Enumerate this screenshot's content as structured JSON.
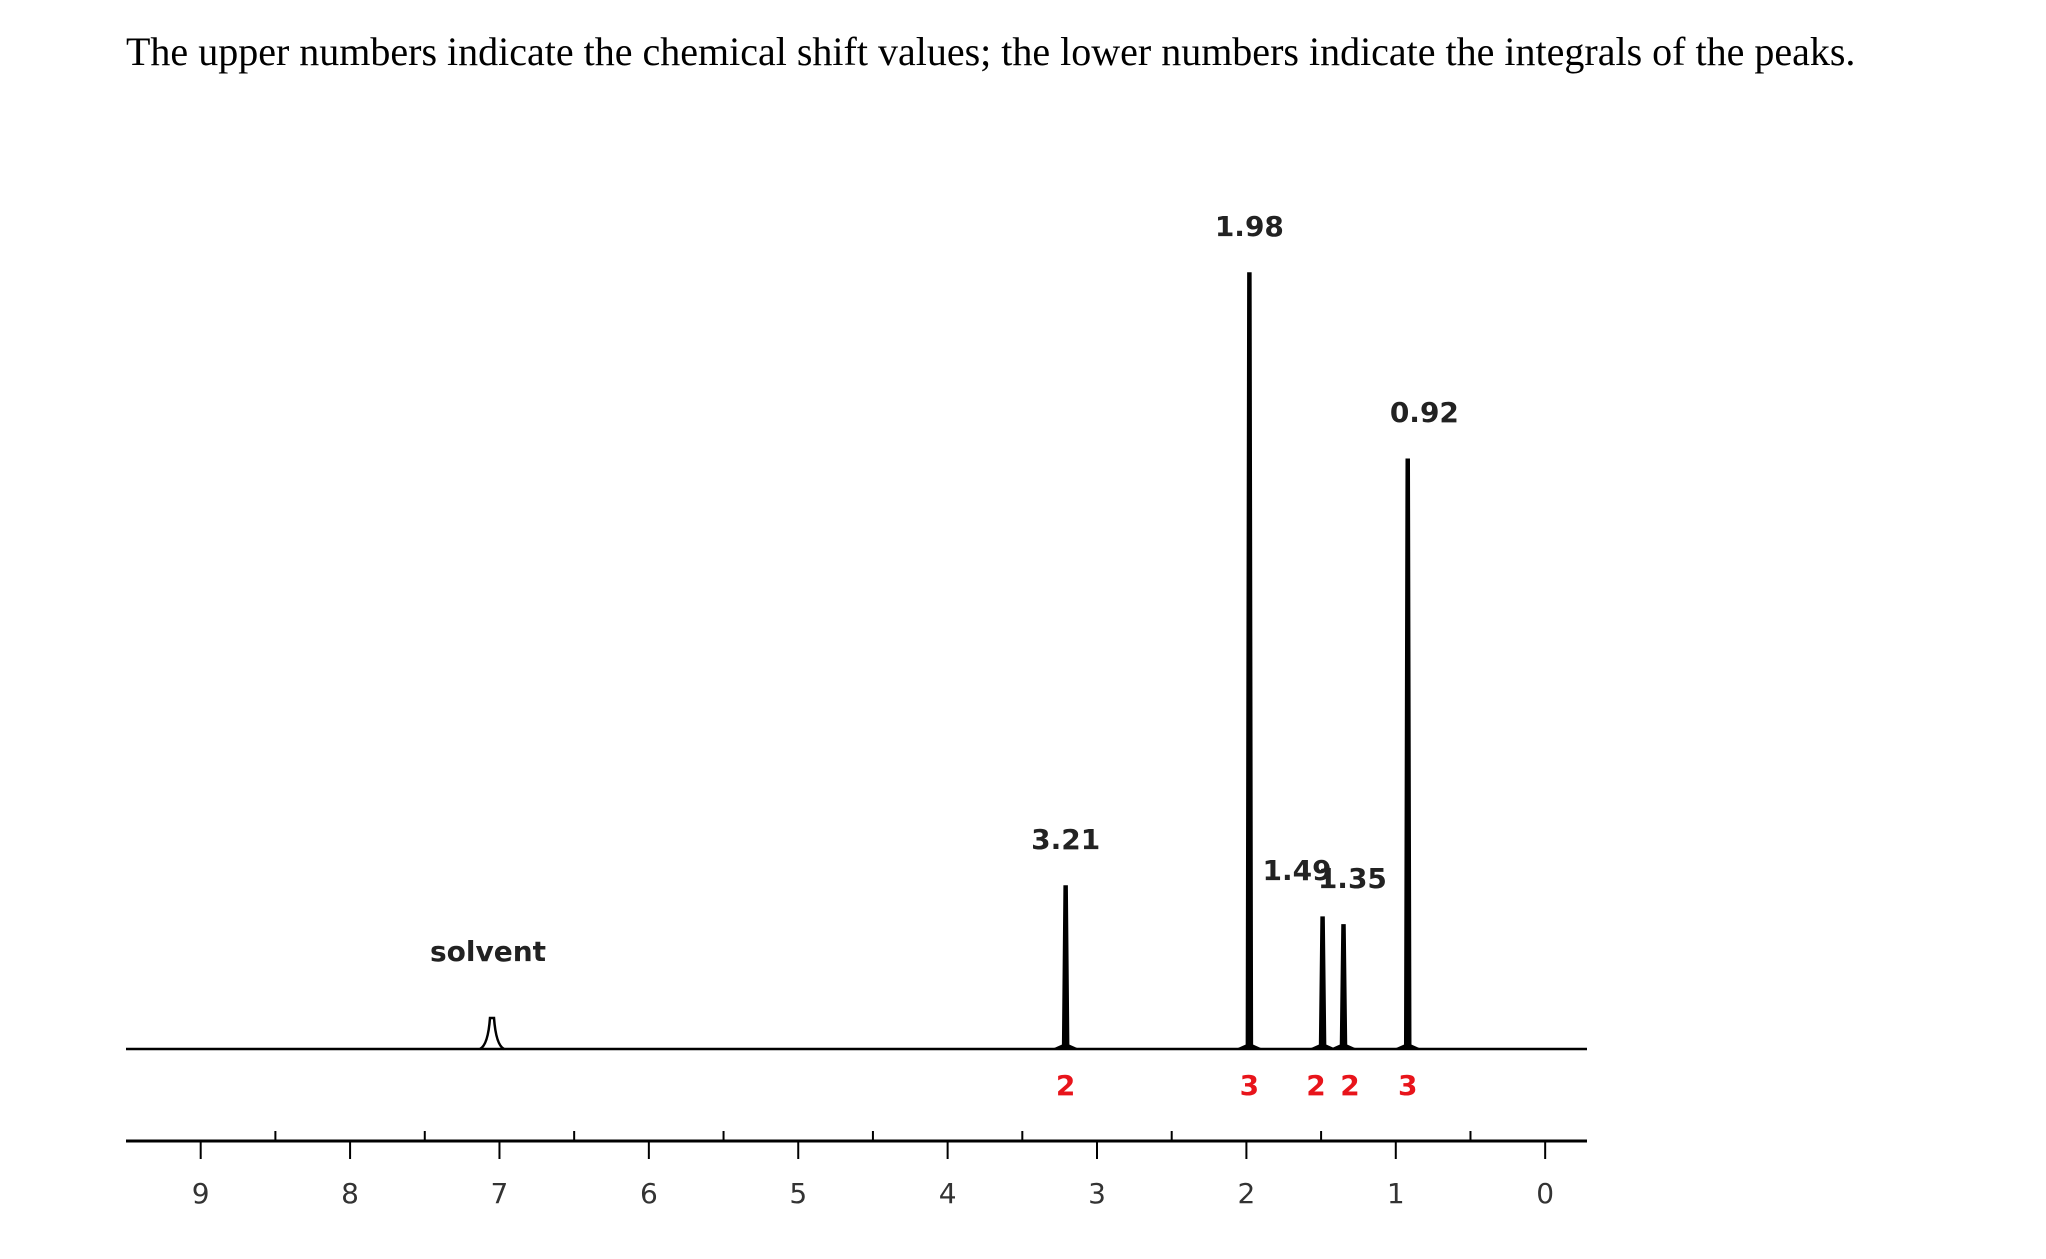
{
  "chart_data": {
    "type": "spectrum",
    "description": "The upper numbers indicate the chemical shift values; the lower numbers indicate the integrals of the peaks.",
    "xlim": [
      9.5,
      -0.28
    ],
    "xticks": [
      9,
      8,
      7,
      6,
      5,
      4,
      3,
      2,
      1,
      0
    ],
    "ylim": [
      0,
      100
    ],
    "color": "#000000",
    "integral_color": "#e8141b",
    "peaks": [
      {
        "shift": 3.21,
        "integral": 2,
        "height": 21
      },
      {
        "shift": 1.98,
        "integral": 3,
        "height": 100
      },
      {
        "shift": 1.49,
        "integral": 2,
        "height": 17
      },
      {
        "shift": 1.35,
        "integral": 2,
        "height": 16
      },
      {
        "shift": 0.92,
        "integral": 3,
        "height": 76
      }
    ],
    "solvent": {
      "label": "solvent",
      "shift": 7.05,
      "height": 4
    }
  }
}
